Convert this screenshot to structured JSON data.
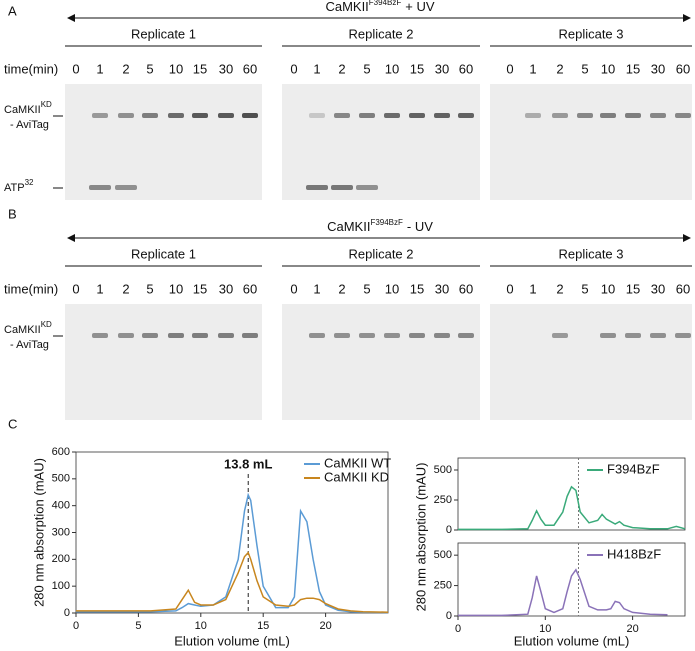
{
  "panel_a": {
    "label": "A",
    "title": {
      "main": "CaMKII",
      "superscript": "F394BzF",
      "suffix": "+ UV"
    },
    "replicates": [
      "Replicate 1",
      "Replicate 2",
      "Replicate 3"
    ],
    "time_header": "time(min)",
    "times": [
      "0",
      "1",
      "2",
      "5",
      "10",
      "15",
      "30",
      "60"
    ],
    "band_labels": [
      {
        "main": "CaMKII",
        "superscript": "KD",
        "line2": "- AviTag"
      },
      {
        "main": "ATP",
        "superscript": "32"
      }
    ]
  },
  "panel_b": {
    "label": "B",
    "title": {
      "main": "CaMKII",
      "superscript": "F394BzF",
      "suffix": "- UV"
    },
    "replicates": [
      "Replicate 1",
      "Replicate 2",
      "Replicate 3"
    ],
    "time_header": "time(min)",
    "times": [
      "0",
      "1",
      "2",
      "5",
      "10",
      "15",
      "30",
      "60"
    ],
    "band_labels": [
      {
        "main": "CaMKII",
        "superscript": "KD",
        "line2": "- AviTag"
      }
    ]
  },
  "panel_c_label": "C",
  "chart_data": [
    {
      "type": "line",
      "xlabel": "Elution volume (mL)",
      "ylabel": "280 nm absorption (mAU)",
      "xlim": [
        0,
        25
      ],
      "xticks": [
        0,
        5,
        10,
        15,
        20
      ],
      "ylim": [
        0,
        600
      ],
      "yticks": [
        0,
        100,
        200,
        300,
        400,
        500,
        600
      ],
      "legend": "upper right",
      "annotation": {
        "text": "13.8 mL",
        "x": 13.8
      },
      "x": [
        0,
        2,
        4,
        6,
        8,
        8.5,
        9,
        9.5,
        10,
        11,
        12,
        13,
        13.5,
        13.8,
        14,
        14.5,
        15,
        16,
        17,
        17.5,
        18,
        18.5,
        19,
        19.5,
        20,
        21,
        22,
        23,
        25
      ],
      "series": [
        {
          "name": "CaMKII WT",
          "color": "#5b9bd5",
          "values": [
            5,
            5,
            5,
            5,
            8,
            20,
            35,
            30,
            25,
            30,
            60,
            200,
            380,
            440,
            420,
            250,
            100,
            20,
            20,
            60,
            380,
            340,
            200,
            80,
            30,
            10,
            5,
            3,
            2
          ]
        },
        {
          "name": "CaMKII KD",
          "color": "#c8861e",
          "values": [
            8,
            8,
            8,
            8,
            15,
            50,
            85,
            40,
            30,
            30,
            50,
            150,
            210,
            225,
            200,
            120,
            60,
            30,
            25,
            30,
            50,
            55,
            55,
            50,
            35,
            15,
            8,
            5,
            3
          ]
        }
      ]
    },
    {
      "type": "line",
      "ylabel": "280 nm absorption (mAU)",
      "xlim": [
        0,
        26
      ],
      "ylim": [
        0,
        600
      ],
      "yticks": [
        0,
        250,
        500
      ],
      "legend": "upper right",
      "vline": 13.8,
      "x": [
        0,
        5,
        8,
        8.5,
        9,
        9.5,
        10,
        11,
        12,
        12.5,
        13,
        13.5,
        14,
        15,
        16,
        16.5,
        17,
        18,
        18.5,
        19,
        20,
        22,
        24,
        25,
        26
      ],
      "series": [
        {
          "name": "F394BzF",
          "color": "#3aaa7a",
          "values": [
            5,
            5,
            10,
            80,
            160,
            90,
            40,
            40,
            150,
            280,
            360,
            330,
            150,
            60,
            80,
            130,
            90,
            50,
            70,
            40,
            20,
            10,
            10,
            30,
            10
          ]
        }
      ]
    },
    {
      "type": "line",
      "xlabel": "Elution volume (mL)",
      "xlim": [
        0,
        26
      ],
      "xticks": [
        0,
        10,
        20
      ],
      "ylim": [
        0,
        600
      ],
      "yticks": [
        0,
        250,
        500
      ],
      "legend": "upper right",
      "vline": 13.8,
      "x": [
        0,
        5,
        8,
        8.5,
        9,
        9.5,
        10,
        11,
        12,
        12.5,
        13,
        13.5,
        14,
        15,
        16,
        17,
        17.5,
        18,
        18.5,
        19,
        20,
        22,
        24
      ],
      "series": [
        {
          "name": "H418BzF",
          "color": "#8a72b8",
          "values": [
            5,
            5,
            15,
            150,
            330,
            200,
            60,
            30,
            60,
            200,
            330,
            380,
            300,
            80,
            50,
            50,
            60,
            120,
            110,
            60,
            30,
            15,
            10
          ]
        }
      ]
    }
  ]
}
